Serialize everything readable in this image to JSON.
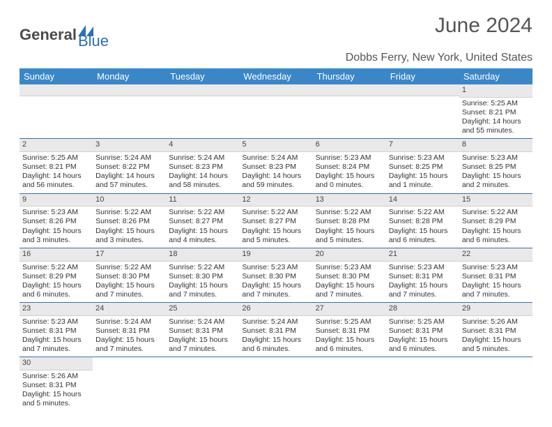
{
  "logo": {
    "text_general": "General",
    "text_blue": "Blue"
  },
  "title": "June 2024",
  "location": "Dobbs Ferry, New York, United States",
  "colors": {
    "header_bg": "#3a87c8",
    "header_fg": "#ffffff",
    "row_divider": "#3a6fa8",
    "daynum_bg": "#e9e9e9",
    "text": "#333333",
    "title_color": "#555555",
    "logo_gray": "#5a5a5a",
    "logo_blue": "#2e6fb5"
  },
  "typography": {
    "title_size_pt": 22,
    "location_size_pt": 12,
    "dayhead_size_pt": 10,
    "cell_size_pt": 8
  },
  "dayHeaders": [
    "Sunday",
    "Monday",
    "Tuesday",
    "Wednesday",
    "Thursday",
    "Friday",
    "Saturday"
  ],
  "weeks": [
    [
      null,
      null,
      null,
      null,
      null,
      null,
      {
        "n": "1",
        "sr": "Sunrise: 5:25 AM",
        "ss": "Sunset: 8:21 PM",
        "dl": "Daylight: 14 hours and 55 minutes."
      }
    ],
    [
      {
        "n": "2",
        "sr": "Sunrise: 5:25 AM",
        "ss": "Sunset: 8:21 PM",
        "dl": "Daylight: 14 hours and 56 minutes."
      },
      {
        "n": "3",
        "sr": "Sunrise: 5:24 AM",
        "ss": "Sunset: 8:22 PM",
        "dl": "Daylight: 14 hours and 57 minutes."
      },
      {
        "n": "4",
        "sr": "Sunrise: 5:24 AM",
        "ss": "Sunset: 8:23 PM",
        "dl": "Daylight: 14 hours and 58 minutes."
      },
      {
        "n": "5",
        "sr": "Sunrise: 5:24 AM",
        "ss": "Sunset: 8:23 PM",
        "dl": "Daylight: 14 hours and 59 minutes."
      },
      {
        "n": "6",
        "sr": "Sunrise: 5:23 AM",
        "ss": "Sunset: 8:24 PM",
        "dl": "Daylight: 15 hours and 0 minutes."
      },
      {
        "n": "7",
        "sr": "Sunrise: 5:23 AM",
        "ss": "Sunset: 8:25 PM",
        "dl": "Daylight: 15 hours and 1 minute."
      },
      {
        "n": "8",
        "sr": "Sunrise: 5:23 AM",
        "ss": "Sunset: 8:25 PM",
        "dl": "Daylight: 15 hours and 2 minutes."
      }
    ],
    [
      {
        "n": "9",
        "sr": "Sunrise: 5:23 AM",
        "ss": "Sunset: 8:26 PM",
        "dl": "Daylight: 15 hours and 3 minutes."
      },
      {
        "n": "10",
        "sr": "Sunrise: 5:22 AM",
        "ss": "Sunset: 8:26 PM",
        "dl": "Daylight: 15 hours and 3 minutes."
      },
      {
        "n": "11",
        "sr": "Sunrise: 5:22 AM",
        "ss": "Sunset: 8:27 PM",
        "dl": "Daylight: 15 hours and 4 minutes."
      },
      {
        "n": "12",
        "sr": "Sunrise: 5:22 AM",
        "ss": "Sunset: 8:27 PM",
        "dl": "Daylight: 15 hours and 5 minutes."
      },
      {
        "n": "13",
        "sr": "Sunrise: 5:22 AM",
        "ss": "Sunset: 8:28 PM",
        "dl": "Daylight: 15 hours and 5 minutes."
      },
      {
        "n": "14",
        "sr": "Sunrise: 5:22 AM",
        "ss": "Sunset: 8:28 PM",
        "dl": "Daylight: 15 hours and 6 minutes."
      },
      {
        "n": "15",
        "sr": "Sunrise: 5:22 AM",
        "ss": "Sunset: 8:29 PM",
        "dl": "Daylight: 15 hours and 6 minutes."
      }
    ],
    [
      {
        "n": "16",
        "sr": "Sunrise: 5:22 AM",
        "ss": "Sunset: 8:29 PM",
        "dl": "Daylight: 15 hours and 6 minutes."
      },
      {
        "n": "17",
        "sr": "Sunrise: 5:22 AM",
        "ss": "Sunset: 8:30 PM",
        "dl": "Daylight: 15 hours and 7 minutes."
      },
      {
        "n": "18",
        "sr": "Sunrise: 5:22 AM",
        "ss": "Sunset: 8:30 PM",
        "dl": "Daylight: 15 hours and 7 minutes."
      },
      {
        "n": "19",
        "sr": "Sunrise: 5:23 AM",
        "ss": "Sunset: 8:30 PM",
        "dl": "Daylight: 15 hours and 7 minutes."
      },
      {
        "n": "20",
        "sr": "Sunrise: 5:23 AM",
        "ss": "Sunset: 8:30 PM",
        "dl": "Daylight: 15 hours and 7 minutes."
      },
      {
        "n": "21",
        "sr": "Sunrise: 5:23 AM",
        "ss": "Sunset: 8:31 PM",
        "dl": "Daylight: 15 hours and 7 minutes."
      },
      {
        "n": "22",
        "sr": "Sunrise: 5:23 AM",
        "ss": "Sunset: 8:31 PM",
        "dl": "Daylight: 15 hours and 7 minutes."
      }
    ],
    [
      {
        "n": "23",
        "sr": "Sunrise: 5:23 AM",
        "ss": "Sunset: 8:31 PM",
        "dl": "Daylight: 15 hours and 7 minutes."
      },
      {
        "n": "24",
        "sr": "Sunrise: 5:24 AM",
        "ss": "Sunset: 8:31 PM",
        "dl": "Daylight: 15 hours and 7 minutes."
      },
      {
        "n": "25",
        "sr": "Sunrise: 5:24 AM",
        "ss": "Sunset: 8:31 PM",
        "dl": "Daylight: 15 hours and 7 minutes."
      },
      {
        "n": "26",
        "sr": "Sunrise: 5:24 AM",
        "ss": "Sunset: 8:31 PM",
        "dl": "Daylight: 15 hours and 6 minutes."
      },
      {
        "n": "27",
        "sr": "Sunrise: 5:25 AM",
        "ss": "Sunset: 8:31 PM",
        "dl": "Daylight: 15 hours and 6 minutes."
      },
      {
        "n": "28",
        "sr": "Sunrise: 5:25 AM",
        "ss": "Sunset: 8:31 PM",
        "dl": "Daylight: 15 hours and 6 minutes."
      },
      {
        "n": "29",
        "sr": "Sunrise: 5:26 AM",
        "ss": "Sunset: 8:31 PM",
        "dl": "Daylight: 15 hours and 5 minutes."
      }
    ],
    [
      {
        "n": "30",
        "sr": "Sunrise: 5:26 AM",
        "ss": "Sunset: 8:31 PM",
        "dl": "Daylight: 15 hours and 5 minutes."
      },
      null,
      null,
      null,
      null,
      null,
      null
    ]
  ]
}
